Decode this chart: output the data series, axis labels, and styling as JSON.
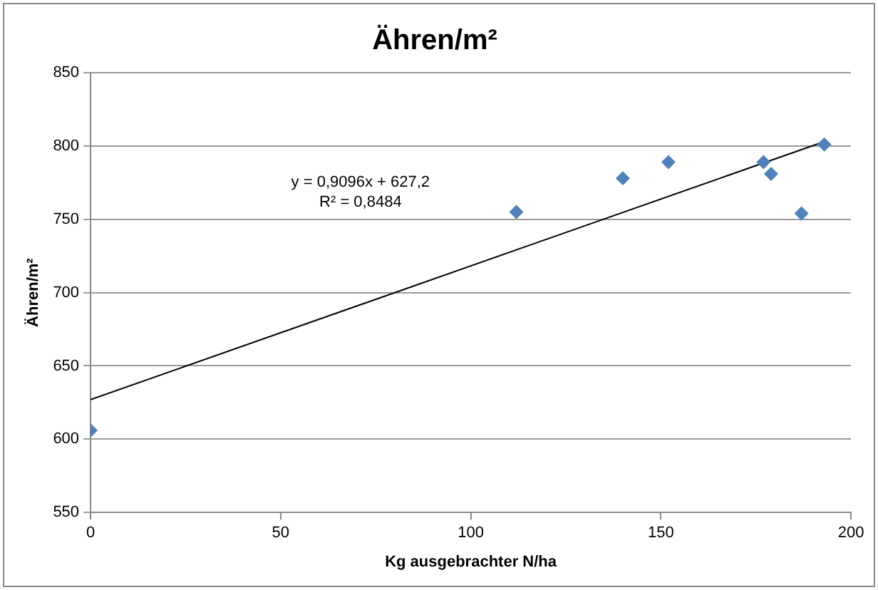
{
  "chart_data": {
    "type": "scatter",
    "title": "Ähren/m²",
    "xlabel": "Kg ausgebrachter N/ha",
    "ylabel": "Ähren/m²",
    "xlim": [
      0,
      200
    ],
    "xticks": [
      0,
      50,
      100,
      150,
      200
    ],
    "ylim": [
      550,
      850
    ],
    "yticks": [
      550,
      600,
      650,
      700,
      750,
      800,
      850
    ],
    "grid": "y",
    "legend": false,
    "marker": "diamond",
    "series": [
      {
        "type": "scatter",
        "color": "#4f81bd",
        "x": [
          0,
          112,
          140,
          152,
          177,
          179,
          187,
          193
        ],
        "values": [
          606,
          755,
          778,
          789,
          789,
          781,
          754,
          801
        ]
      },
      {
        "type": "line",
        "color": "#000000",
        "marker": "none",
        "x": [
          0,
          193
        ],
        "values": [
          627,
          803
        ]
      }
    ],
    "annotations": [
      "y = 0,9096x + 627,2",
      "R² = 0,8484"
    ]
  }
}
